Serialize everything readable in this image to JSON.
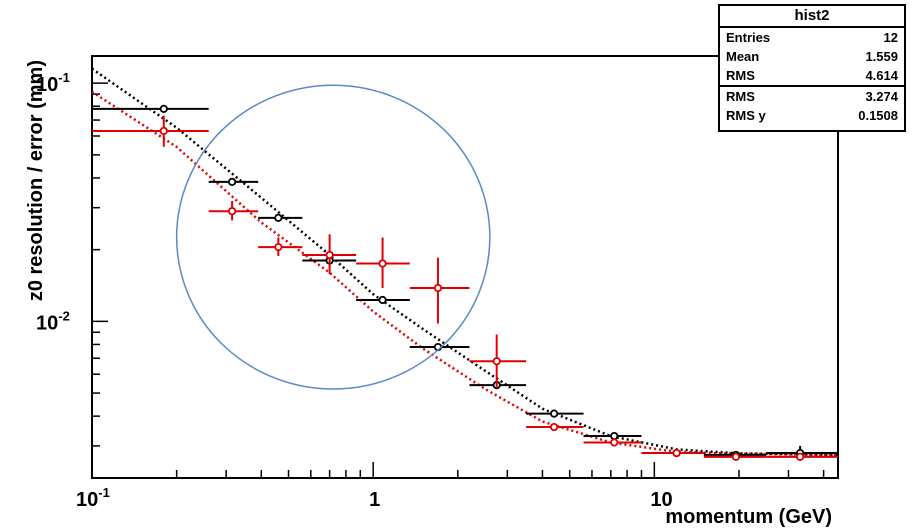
{
  "chart_data": {
    "type": "scatter",
    "title": "",
    "xlabel": "momentum (GeV)",
    "ylabel": "z0 resolution / error (mm)",
    "x_scale": "log",
    "y_scale": "log",
    "xlim": [
      0.1,
      45
    ],
    "ylim": [
      0.0022,
      0.13
    ],
    "grid": false,
    "x_ticks": [
      {
        "base": "10",
        "exp": "-1",
        "value": 0.1
      },
      {
        "base": "1",
        "exp": "",
        "value": 1
      },
      {
        "base": "10",
        "exp": "",
        "value": 10
      }
    ],
    "y_ticks": [
      {
        "base": "10",
        "exp": "-1",
        "value": 0.1
      },
      {
        "base": "10",
        "exp": "-2",
        "value": 0.01
      }
    ],
    "series": [
      {
        "color": "#000000",
        "points": [
          {
            "x": 0.18,
            "y": 0.078,
            "xlo": 0.1,
            "xhi": 0.26,
            "ylo": 0.078,
            "yhi": 0.078
          },
          {
            "x": 0.315,
            "y": 0.0385,
            "xlo": 0.26,
            "xhi": 0.39,
            "ylo": 0.0385,
            "yhi": 0.0385
          },
          {
            "x": 0.46,
            "y": 0.0272,
            "xlo": 0.39,
            "xhi": 0.56,
            "ylo": 0.0272,
            "yhi": 0.0272
          },
          {
            "x": 0.7,
            "y": 0.018,
            "xlo": 0.56,
            "xhi": 0.87,
            "ylo": 0.018,
            "yhi": 0.018
          },
          {
            "x": 1.08,
            "y": 0.0123,
            "xlo": 0.87,
            "xhi": 1.35,
            "ylo": 0.0123,
            "yhi": 0.0123
          },
          {
            "x": 1.7,
            "y": 0.0078,
            "xlo": 1.35,
            "xhi": 2.2,
            "ylo": 0.0078,
            "yhi": 0.0078
          },
          {
            "x": 2.75,
            "y": 0.0054,
            "xlo": 2.2,
            "xhi": 3.5,
            "ylo": 0.0054,
            "yhi": 0.0054
          },
          {
            "x": 4.4,
            "y": 0.0041,
            "xlo": 3.5,
            "xhi": 5.6,
            "ylo": 0.0041,
            "yhi": 0.0041
          },
          {
            "x": 7.2,
            "y": 0.0033,
            "xlo": 5.6,
            "xhi": 9,
            "ylo": 0.0033,
            "yhi": 0.0033
          },
          {
            "x": 12,
            "y": 0.0028,
            "xlo": 9,
            "xhi": 15,
            "ylo": 0.0028,
            "yhi": 0.0028
          },
          {
            "x": 19.5,
            "y": 0.00275,
            "xlo": 15,
            "xhi": 25,
            "ylo": 0.00275,
            "yhi": 0.00275
          },
          {
            "x": 33,
            "y": 0.0028,
            "xlo": 25,
            "xhi": 45,
            "ylo": 0.0026,
            "yhi": 0.003
          }
        ],
        "fit": [
          [
            0.1,
            0.115
          ],
          [
            0.2,
            0.065
          ],
          [
            0.4,
            0.033
          ],
          [
            0.7,
            0.019
          ],
          [
            1.0,
            0.013
          ],
          [
            1.5,
            0.0093
          ],
          [
            2.5,
            0.0062
          ],
          [
            4,
            0.0043
          ],
          [
            7,
            0.0033
          ],
          [
            12,
            0.0029
          ],
          [
            20,
            0.00279
          ],
          [
            45,
            0.00275
          ]
        ]
      },
      {
        "color": "#e00000",
        "points": [
          {
            "x": 0.18,
            "y": 0.063,
            "xlo": 0.1,
            "xhi": 0.26,
            "ylo": 0.054,
            "yhi": 0.073
          },
          {
            "x": 0.315,
            "y": 0.029,
            "xlo": 0.26,
            "xhi": 0.39,
            "ylo": 0.0265,
            "yhi": 0.032
          },
          {
            "x": 0.46,
            "y": 0.0205,
            "xlo": 0.39,
            "xhi": 0.56,
            "ylo": 0.0188,
            "yhi": 0.0225
          },
          {
            "x": 0.7,
            "y": 0.019,
            "xlo": 0.56,
            "xhi": 0.87,
            "ylo": 0.0158,
            "yhi": 0.0232
          },
          {
            "x": 1.08,
            "y": 0.0175,
            "xlo": 0.87,
            "xhi": 1.35,
            "ylo": 0.0138,
            "yhi": 0.0225
          },
          {
            "x": 1.7,
            "y": 0.0138,
            "xlo": 1.35,
            "xhi": 2.2,
            "ylo": 0.0098,
            "yhi": 0.0185
          },
          {
            "x": 2.75,
            "y": 0.0068,
            "xlo": 2.2,
            "xhi": 3.5,
            "ylo": 0.0053,
            "yhi": 0.0088
          },
          {
            "x": 4.4,
            "y": 0.0036,
            "xlo": 3.5,
            "xhi": 5.6,
            "ylo": 0.0036,
            "yhi": 0.0036
          },
          {
            "x": 7.2,
            "y": 0.0031,
            "xlo": 5.6,
            "xhi": 9,
            "ylo": 0.0031,
            "yhi": 0.0031
          },
          {
            "x": 12,
            "y": 0.0028,
            "xlo": 9,
            "xhi": 15,
            "ylo": 0.0028,
            "yhi": 0.0028
          },
          {
            "x": 19.5,
            "y": 0.0027,
            "xlo": 15,
            "xhi": 25,
            "ylo": 0.0027,
            "yhi": 0.0027
          },
          {
            "x": 33,
            "y": 0.0027,
            "xlo": 25,
            "xhi": 45,
            "ylo": 0.0027,
            "yhi": 0.0027
          }
        ],
        "fit": [
          [
            0.1,
            0.092
          ],
          [
            0.2,
            0.054
          ],
          [
            0.4,
            0.026
          ],
          [
            0.7,
            0.016
          ],
          [
            1.0,
            0.011
          ],
          [
            1.5,
            0.0077
          ],
          [
            2.5,
            0.0052
          ],
          [
            4,
            0.0038
          ],
          [
            7,
            0.0031
          ],
          [
            12,
            0.00283
          ],
          [
            20,
            0.00278
          ],
          [
            45,
            0.00275
          ]
        ]
      }
    ],
    "annotation": {
      "shape": "ellipse",
      "color": "#5b8ac7",
      "cx": 0.72,
      "cy": 0.0175,
      "rx_low": 0.2,
      "rx_high": 2.6,
      "ry_low": 0.0052,
      "ry_high": 0.098
    }
  },
  "stats": {
    "title": "hist2",
    "rows": [
      {
        "label": "Entries",
        "value": "12"
      },
      {
        "label": "Mean",
        "value": "1.559"
      },
      {
        "label": "RMS",
        "value": "4.614"
      }
    ],
    "rows2": [
      {
        "label": "RMS",
        "value": "3.274"
      },
      {
        "label": "RMS y",
        "value": "0.1508"
      }
    ]
  }
}
